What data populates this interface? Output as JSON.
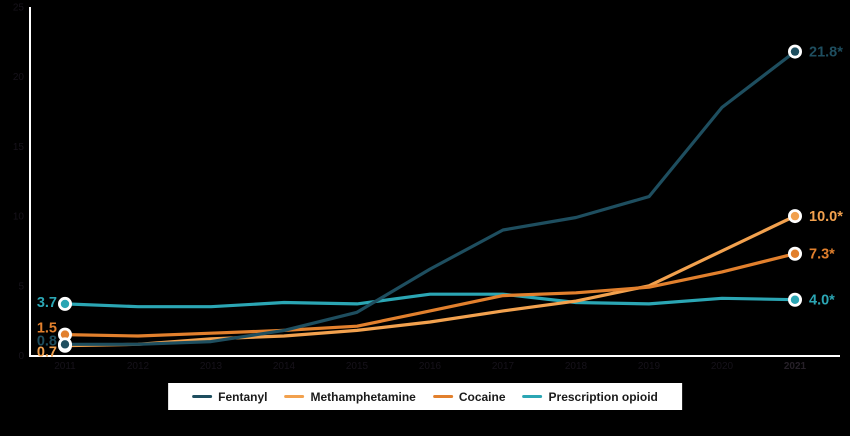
{
  "colors": {
    "background": "#000000",
    "axis": "#ffffff",
    "legend_background": "#ffffff",
    "legend_text": "#1b1b1b",
    "hidden_tick": "#16121a",
    "hidden_tick_last": "#262028",
    "dot_ring": "#ffffff"
  },
  "chart_data": {
    "type": "line",
    "title": "",
    "xlabel": "",
    "ylabel": "",
    "grid": false,
    "legend_position": "bottom",
    "ylim": [
      0,
      25
    ],
    "y_ticks": [
      0,
      5,
      10,
      15,
      20,
      25
    ],
    "x_tick_labels": [
      "2011",
      "2012",
      "2013",
      "2014",
      "2015",
      "2016",
      "2017",
      "2018",
      "2019",
      "2020",
      "2021"
    ],
    "series": [
      {
        "name": "Fentanyl",
        "color": "#1e4e5f",
        "values": [
          0.8,
          0.8,
          1.0,
          1.8,
          3.1,
          6.2,
          9.0,
          9.9,
          11.4,
          17.8,
          21.8
        ],
        "start_label": "0.8",
        "end_label": "21.8*"
      },
      {
        "name": "Methamphetamine",
        "color": "#f2a14e",
        "values": [
          0.7,
          0.8,
          1.2,
          1.4,
          1.8,
          2.4,
          3.2,
          3.9,
          5.0,
          7.5,
          10.0
        ],
        "start_label": "0.7",
        "end_label": "10.0*"
      },
      {
        "name": "Cocaine",
        "color": "#e2802d",
        "values": [
          1.5,
          1.4,
          1.6,
          1.8,
          2.1,
          3.2,
          4.3,
          4.5,
          4.9,
          6.0,
          7.3
        ],
        "start_label": "1.5",
        "end_label": "7.3*"
      },
      {
        "name": "Prescription opioid",
        "color": "#2ba6b4",
        "values": [
          3.7,
          3.5,
          3.5,
          3.8,
          3.7,
          4.4,
          4.4,
          3.8,
          3.7,
          4.1,
          4.0
        ],
        "start_label": "3.7",
        "end_label": "4.0*"
      }
    ]
  }
}
